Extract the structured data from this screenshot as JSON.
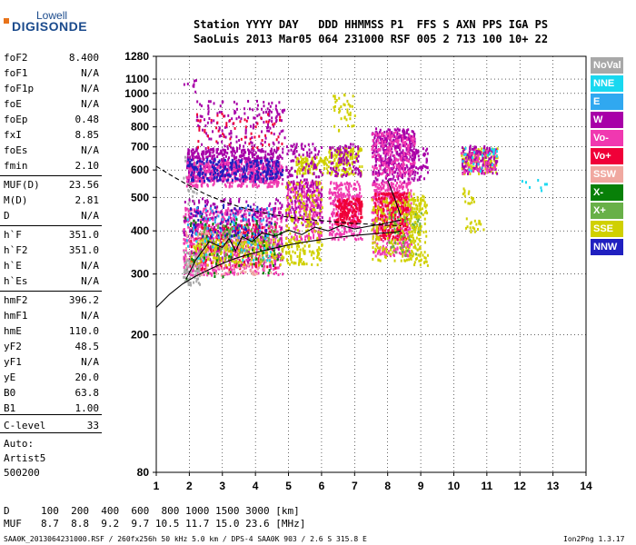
{
  "logo": {
    "line1": "Lowell",
    "line2": "DIGISONDE"
  },
  "header": {
    "row1": "Station YYYY DAY   DDD HHMMSS P1  FFS S AXN PPS IGA PS",
    "row2": "SaoLuis 2013 Mar05 064 231000 RSF 005 2 713 100 10+ 22"
  },
  "params": [
    {
      "name": "foF2",
      "value": "8.400"
    },
    {
      "name": "foF1",
      "value": "N/A"
    },
    {
      "name": "foF1p",
      "value": "N/A"
    },
    {
      "name": "foE",
      "value": "N/A"
    },
    {
      "name": "foEp",
      "value": "0.48"
    },
    {
      "name": "fxI",
      "value": "8.85"
    },
    {
      "name": "foEs",
      "value": "N/A"
    },
    {
      "name": "fmin",
      "value": "2.10"
    },
    {
      "name": "MUF(D)",
      "value": "23.56"
    },
    {
      "name": "M(D)",
      "value": "2.81"
    },
    {
      "name": "D",
      "value": "N/A"
    },
    {
      "name": "h`F",
      "value": "351.0"
    },
    {
      "name": "h`F2",
      "value": "351.0"
    },
    {
      "name": "h`E",
      "value": "N/A"
    },
    {
      "name": "h`Es",
      "value": "N/A"
    },
    {
      "name": "hmF2",
      "value": "396.2"
    },
    {
      "name": "hmF1",
      "value": "N/A"
    },
    {
      "name": "hmE",
      "value": "110.0"
    },
    {
      "name": "yF2",
      "value": "48.5"
    },
    {
      "name": "yF1",
      "value": "N/A"
    },
    {
      "name": "yE",
      "value": "20.0"
    },
    {
      "name": "B0",
      "value": "63.8"
    },
    {
      "name": "B1",
      "value": "1.00"
    },
    {
      "name": "C-level",
      "value": "33"
    }
  ],
  "auto": {
    "label": "Auto:",
    "artist": "Artist5",
    "version": "500200"
  },
  "legend": [
    {
      "label": "NoVal",
      "color": "#a8a8a8"
    },
    {
      "label": "NNE",
      "color": "#18d8f0"
    },
    {
      "label": "E",
      "color": "#30a8f0"
    },
    {
      "label": "W",
      "color": "#a800a8"
    },
    {
      "label": "Vo-",
      "color": "#f038b0"
    },
    {
      "label": "Vo+",
      "color": "#f00038"
    },
    {
      "label": "SSW",
      "color": "#f0a8a0"
    },
    {
      "label": "X-",
      "color": "#088008"
    },
    {
      "label": "X+",
      "color": "#68b048"
    },
    {
      "label": "SSE",
      "color": "#d0d000"
    },
    {
      "label": "NNW",
      "color": "#2020c0"
    }
  ],
  "dmuf": {
    "d_label": "D",
    "d_values": "100  200  400  600  800 1000 1500 3000 [km]",
    "muf_label": "MUF",
    "muf_values": "8.7  8.8  9.2  9.7 10.5 11.7 15.0 23.6 [MHz]"
  },
  "footer": {
    "left": "SAA0K_2013064231000.RSF / 260fx256h 50 kHz 5.0 km / DPS-4 SAA0K 903 / 2.6 S 315.8 E",
    "right": "Ion2Png 1.3.17"
  },
  "chart_data": {
    "type": "scatter",
    "title": "",
    "xlabel": "",
    "ylabel": "",
    "xlim": [
      1,
      14
    ],
    "ylim": [
      80,
      1280
    ],
    "y_scale": "log",
    "x_ticks": [
      1,
      2,
      3,
      4,
      5,
      6,
      7,
      8,
      9,
      10,
      11,
      12,
      13,
      14
    ],
    "y_ticks": [
      80,
      200,
      300,
      400,
      500,
      600,
      700,
      800,
      900,
      1000,
      1100,
      1280
    ],
    "grid": true,
    "legend_position": "right",
    "clusters": [
      {
        "series": "NoVal",
        "x": [
          1.8,
          2.2
        ],
        "y": [
          460,
          680
        ],
        "n": 30,
        "seed": 1
      },
      {
        "series": "W",
        "x": [
          1.9,
          4.8
        ],
        "y": [
          560,
          700
        ],
        "n": 550,
        "seed": 2
      },
      {
        "series": "Vo-",
        "x": [
          1.9,
          4.8
        ],
        "y": [
          540,
          640
        ],
        "n": 350,
        "seed": 3
      },
      {
        "series": "NNW",
        "x": [
          1.9,
          4.8
        ],
        "y": [
          560,
          650
        ],
        "n": 220,
        "seed": 4
      },
      {
        "series": "W",
        "x": [
          2.2,
          4.9
        ],
        "y": [
          700,
          960
        ],
        "n": 160,
        "seed": 5
      },
      {
        "series": "Vo+",
        "x": [
          2.2,
          4.8
        ],
        "y": [
          700,
          880
        ],
        "n": 60,
        "seed": 6
      },
      {
        "series": "Vo-",
        "x": [
          1.8,
          4.8
        ],
        "y": [
          300,
          470
        ],
        "n": 700,
        "seed": 7
      },
      {
        "series": "Vo+",
        "x": [
          2.0,
          4.6
        ],
        "y": [
          310,
          420
        ],
        "n": 220,
        "seed": 8
      },
      {
        "series": "W",
        "x": [
          1.8,
          4.8
        ],
        "y": [
          320,
          500
        ],
        "n": 250,
        "seed": 9
      },
      {
        "series": "SSW",
        "x": [
          1.8,
          4.6
        ],
        "y": [
          300,
          400
        ],
        "n": 180,
        "seed": 10
      },
      {
        "series": "X+",
        "x": [
          2.2,
          4.8
        ],
        "y": [
          330,
          420
        ],
        "n": 120,
        "seed": 11
      },
      {
        "series": "SSE",
        "x": [
          2.0,
          6.0
        ],
        "y": [
          320,
          380
        ],
        "n": 260,
        "seed": 12
      },
      {
        "series": "NNW",
        "x": [
          2.0,
          4.6
        ],
        "y": [
          380,
          480
        ],
        "n": 80,
        "seed": 13
      },
      {
        "series": "E",
        "x": [
          1.9,
          4.5
        ],
        "y": [
          360,
          470
        ],
        "n": 50,
        "seed": 14
      },
      {
        "series": "NNE",
        "x": [
          1.9,
          4.5
        ],
        "y": [
          330,
          440
        ],
        "n": 40,
        "seed": 15
      },
      {
        "series": "X-",
        "x": [
          1.8,
          4.8
        ],
        "y": [
          290,
          450
        ],
        "n": 70,
        "seed": 16
      },
      {
        "series": "NoVal",
        "x": [
          1.8,
          2.3
        ],
        "y": [
          280,
          350
        ],
        "n": 60,
        "seed": 17
      },
      {
        "series": "Vo-",
        "x": [
          4.9,
          6.0
        ],
        "y": [
          380,
          560
        ],
        "n": 260,
        "seed": 18
      },
      {
        "series": "W",
        "x": [
          4.9,
          6.0
        ],
        "y": [
          420,
          580
        ],
        "n": 140,
        "seed": 19
      },
      {
        "series": "SSE",
        "x": [
          4.9,
          6.0
        ],
        "y": [
          340,
          560
        ],
        "n": 120,
        "seed": 20
      },
      {
        "series": "SSE",
        "x": [
          5.2,
          6.2
        ],
        "y": [
          590,
          660
        ],
        "n": 100,
        "seed": 21
      },
      {
        "series": "W",
        "x": [
          4.9,
          6.0
        ],
        "y": [
          580,
          720
        ],
        "n": 80,
        "seed": 22
      },
      {
        "series": "Vo-",
        "x": [
          6.2,
          7.2
        ],
        "y": [
          380,
          560
        ],
        "n": 280,
        "seed": 23
      },
      {
        "series": "Vo+",
        "x": [
          6.4,
          7.2
        ],
        "y": [
          420,
          500
        ],
        "n": 170,
        "seed": 24
      },
      {
        "series": "SSE",
        "x": [
          6.2,
          7.2
        ],
        "y": [
          580,
          700
        ],
        "n": 140,
        "seed": 25
      },
      {
        "series": "W",
        "x": [
          6.2,
          7.2
        ],
        "y": [
          580,
          720
        ],
        "n": 90,
        "seed": 26
      },
      {
        "series": "SSE",
        "x": [
          6.3,
          7.0
        ],
        "y": [
          780,
          1000
        ],
        "n": 40,
        "seed": 27
      },
      {
        "series": "Vo-",
        "x": [
          7.5,
          8.7
        ],
        "y": [
          340,
          560
        ],
        "n": 420,
        "seed": 28
      },
      {
        "series": "Vo+",
        "x": [
          7.6,
          8.6
        ],
        "y": [
          380,
          520
        ],
        "n": 280,
        "seed": 29
      },
      {
        "series": "W",
        "x": [
          7.5,
          8.8
        ],
        "y": [
          560,
          800
        ],
        "n": 380,
        "seed": 30
      },
      {
        "series": "Vo-",
        "x": [
          7.5,
          8.8
        ],
        "y": [
          580,
          780
        ],
        "n": 200,
        "seed": 31
      },
      {
        "series": "SSE",
        "x": [
          7.5,
          9.0
        ],
        "y": [
          330,
          500
        ],
        "n": 200,
        "seed": 32
      },
      {
        "series": "X+",
        "x": [
          8.0,
          9.0
        ],
        "y": [
          340,
          460
        ],
        "n": 50,
        "seed": 33
      },
      {
        "series": "SSE",
        "x": [
          8.6,
          9.2
        ],
        "y": [
          320,
          520
        ],
        "n": 120,
        "seed": 34
      },
      {
        "series": "W",
        "x": [
          8.7,
          9.2
        ],
        "y": [
          560,
          700
        ],
        "n": 60,
        "seed": 35
      },
      {
        "series": "SSE",
        "x": [
          10.2,
          11.3
        ],
        "y": [
          590,
          700
        ],
        "n": 130,
        "seed": 36
      },
      {
        "series": "W",
        "x": [
          10.2,
          11.3
        ],
        "y": [
          590,
          710
        ],
        "n": 120,
        "seed": 37
      },
      {
        "series": "Vo-",
        "x": [
          10.2,
          11.3
        ],
        "y": [
          590,
          690
        ],
        "n": 60,
        "seed": 38
      },
      {
        "series": "NNE",
        "x": [
          10.2,
          11.3
        ],
        "y": [
          600,
          700
        ],
        "n": 25,
        "seed": 39
      },
      {
        "series": "SSE",
        "x": [
          10.3,
          10.9
        ],
        "y": [
          400,
          440
        ],
        "n": 20,
        "seed": 40
      },
      {
        "series": "SSE",
        "x": [
          10.2,
          10.6
        ],
        "y": [
          480,
          540
        ],
        "n": 15,
        "seed": 41
      },
      {
        "series": "W",
        "x": [
          1.8,
          2.2
        ],
        "y": [
          1000,
          1100
        ],
        "n": 8,
        "seed": 42
      },
      {
        "series": "NNE",
        "x": [
          12.0,
          12.8
        ],
        "y": [
          520,
          580
        ],
        "n": 8,
        "seed": 43
      }
    ],
    "traces": [
      {
        "x": [
          1.0,
          1.4,
          1.8,
          2.2,
          2.6,
          3.0,
          3.4,
          3.8,
          4.2,
          4.6,
          5.0,
          5.4,
          5.8,
          6.2,
          6.6,
          7.0,
          7.4,
          7.8,
          8.2,
          8.4
        ],
        "y": [
          240,
          262,
          281,
          296,
          309,
          322,
          333,
          342,
          350,
          357,
          364,
          370,
          375,
          380,
          384,
          388,
          391,
          394,
          396,
          400
        ],
        "style": "solid"
      },
      {
        "x": [
          1.9,
          2.2,
          2.6,
          3.0,
          3.2,
          3.4,
          3.6,
          3.9,
          4.2,
          4.6,
          5.0,
          5.4,
          5.8,
          6.2,
          6.6,
          7.0,
          7.4,
          7.8,
          8.2,
          8.4
        ],
        "y": [
          290,
          330,
          372,
          358,
          380,
          350,
          385,
          372,
          395,
          386,
          402,
          390,
          410,
          400,
          415,
          405,
          412,
          418,
          426,
          430
        ],
        "style": "solid"
      },
      {
        "x": [
          1.0,
          1.5,
          2.0,
          2.5,
          3.0,
          3.5,
          4.0,
          4.5,
          5.0,
          5.5,
          6.0,
          6.5,
          7.0,
          7.5,
          8.0,
          8.4
        ],
        "y": [
          615,
          575,
          540,
          510,
          488,
          470,
          456,
          446,
          438,
          432,
          428,
          424,
          420,
          418,
          415,
          414
        ],
        "style": "dashed"
      },
      {
        "x": [
          8.0,
          8.2,
          8.4
        ],
        "y": [
          560,
          500,
          440
        ],
        "style": "solid"
      }
    ]
  }
}
